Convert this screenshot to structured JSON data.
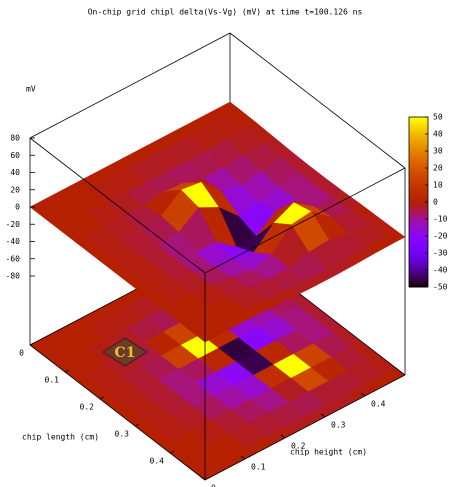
{
  "chart_data": {
    "type": "surface",
    "title": "On-chip grid chipl delta(Vs-Vg) (mV) at time t=100.126 ns",
    "zlabel": "mV",
    "xlabel": "chip length (cm)",
    "ylabel": "chip height (cm)",
    "annotation": "C1",
    "x": [
      0,
      0.05,
      0.1,
      0.15,
      0.2,
      0.25,
      0.3,
      0.35,
      0.4,
      0.45,
      0.5
    ],
    "y": [
      0,
      0.05,
      0.1,
      0.15,
      0.2,
      0.25,
      0.3,
      0.35,
      0.4,
      0.45,
      0.5
    ],
    "z": [
      [
        0,
        0,
        0,
        0,
        0,
        0,
        0,
        0,
        0,
        0,
        0
      ],
      [
        0,
        0,
        0,
        -1,
        -1,
        -2,
        -2,
        -2,
        -1,
        -1,
        0
      ],
      [
        0,
        0,
        -1,
        -2,
        -4,
        -5,
        -6,
        -5,
        -4,
        -2,
        -1
      ],
      [
        0,
        -1,
        -2,
        -4,
        2,
        14,
        -3,
        -11,
        -7,
        -4,
        -2
      ],
      [
        0,
        -1,
        -3,
        -5,
        13,
        50,
        5,
        -16,
        -12,
        -6,
        -3
      ],
      [
        0,
        -1,
        -3,
        -8,
        -6,
        3,
        -46,
        -21,
        -15,
        -8,
        -3
      ],
      [
        0,
        -1,
        -3,
        -8,
        -15,
        -20,
        -45,
        4,
        -6,
        -8,
        -3
      ],
      [
        0,
        -1,
        -2,
        -6,
        -11,
        -15,
        7,
        50,
        14,
        -5,
        -2
      ],
      [
        0,
        0,
        -1,
        -3,
        -6,
        -9,
        -2,
        16,
        3,
        -3,
        -1
      ],
      [
        0,
        0,
        0,
        -2,
        -3,
        -4,
        -5,
        -3,
        -3,
        -2,
        -1
      ],
      [
        0,
        0,
        0,
        0,
        -1,
        -2,
        -2,
        -2,
        -1,
        0,
        0
      ]
    ],
    "xlim": [
      0,
      0.5
    ],
    "ylim": [
      0,
      0.5
    ],
    "zlim": [
      -80,
      80
    ],
    "xticks": [
      0,
      0.1,
      0.2,
      0.3,
      0.4
    ],
    "yticks": [
      0,
      0.1,
      0.2,
      0.3,
      0.4
    ],
    "zticks": [
      -80,
      -60,
      -40,
      -20,
      0,
      20,
      40,
      60,
      80
    ],
    "cblim": [
      -50,
      50
    ],
    "cbticks": [
      -50,
      -40,
      -30,
      -20,
      -10,
      0,
      10,
      20,
      30,
      40,
      50
    ]
  }
}
